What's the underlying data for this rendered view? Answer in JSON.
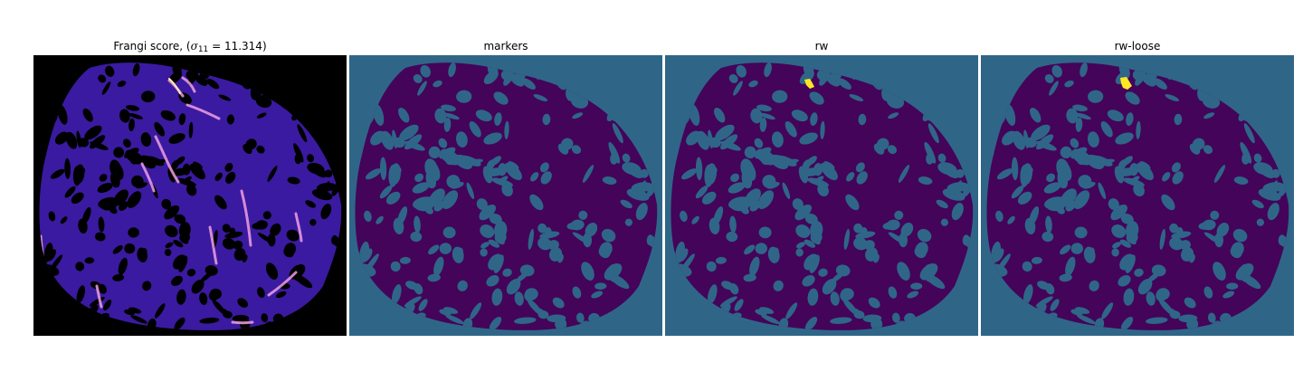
{
  "panels": [
    {
      "title": "Frangi score, (σ₁₁ = 11.314)",
      "title_parts": {
        "prefix": "Frangi score, (",
        "symbol": "σ",
        "subscript": "11",
        "equals": " = ",
        "value": "11.314",
        "suffix": ")"
      },
      "colormap": "magma"
    },
    {
      "title": "markers",
      "colormap": "viridis"
    },
    {
      "title": "rw",
      "colormap": "viridis"
    },
    {
      "title": "rw-loose",
      "colormap": "viridis"
    }
  ],
  "colors": {
    "frangi_background": "#000000",
    "frangi_tissue": "#3a1aa0",
    "frangi_hot": "#f0a0e0",
    "viridis_background": "#2f6688",
    "viridis_tissue": "#44045a",
    "viridis_highlight": "#fde725"
  }
}
